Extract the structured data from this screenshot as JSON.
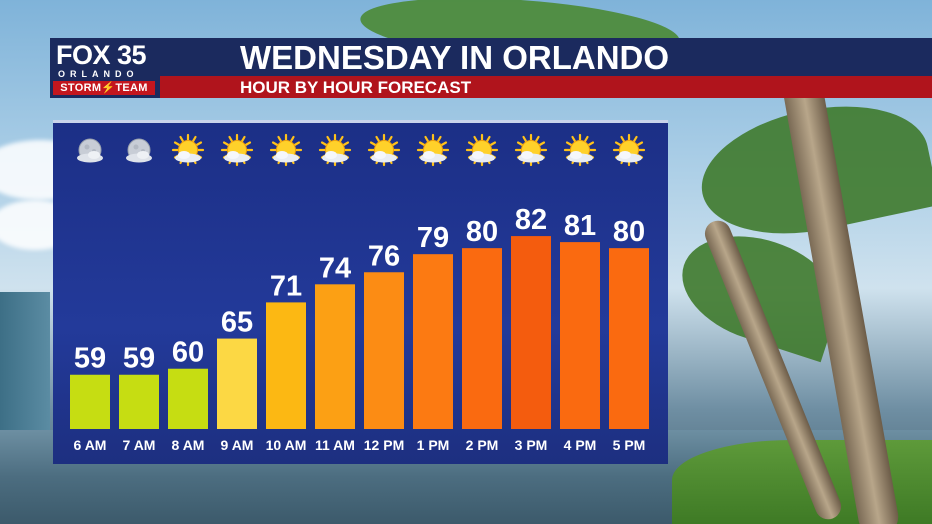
{
  "brand": {
    "fox": "FOX 35",
    "city": "ORLANDO",
    "storm_team": "STORM⚡TEAM"
  },
  "header": {
    "title": "WEDNESDAY IN ORLANDO",
    "subtitle": "HOUR BY HOUR FORECAST"
  },
  "colors": {
    "navy": "#1b2a5e",
    "red": "#b0141c",
    "panel": "#1f3490"
  },
  "chart_data": {
    "type": "bar",
    "categories": [
      "6 AM",
      "7 AM",
      "8 AM",
      "9 AM",
      "10 AM",
      "11 AM",
      "12 PM",
      "1 PM",
      "2 PM",
      "3 PM",
      "4 PM",
      "5 PM"
    ],
    "values": [
      59,
      59,
      60,
      65,
      71,
      74,
      76,
      79,
      80,
      82,
      81,
      80
    ],
    "data_labels": [
      "59",
      "59",
      "60",
      "65",
      "71",
      "74",
      "76",
      "79",
      "80",
      "82",
      "81",
      "80"
    ],
    "icons": [
      "moon-cloud-icon",
      "moon-cloud-icon",
      "sun-cloud-icon",
      "sun-cloud-icon",
      "sun-cloud-icon",
      "sun-cloud-icon",
      "sun-cloud-icon",
      "sun-cloud-icon",
      "sun-cloud-icon",
      "sun-cloud-icon",
      "sun-cloud-icon",
      "sun-cloud-icon"
    ],
    "bar_colors": [
      "#c6dd12",
      "#c6dd12",
      "#c6dd12",
      "#fcd844",
      "#fcb813",
      "#fca014",
      "#fc8c14",
      "#fc7a12",
      "#fa6a10",
      "#f45c0e",
      "#fa6a10",
      "#fa6a10"
    ],
    "ylim": [
      50,
      85
    ],
    "title": "",
    "xlabel": "",
    "ylabel": "",
    "grid": false,
    "legend": "none"
  }
}
